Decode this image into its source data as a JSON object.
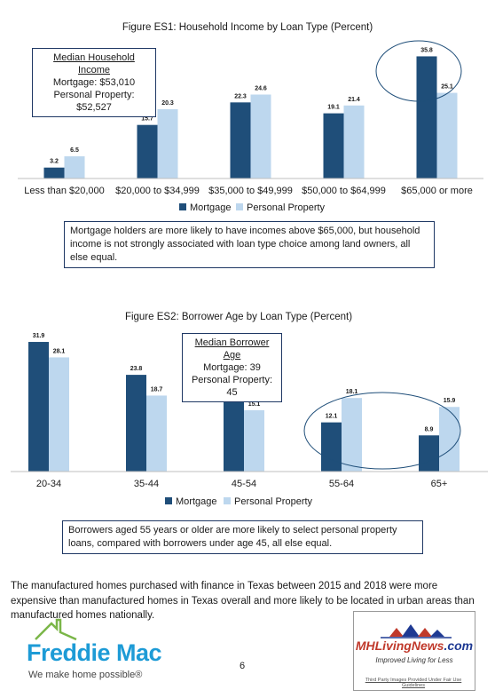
{
  "chart_data": [
    {
      "type": "bar",
      "title": "Figure ES1: Household Income by Loan Type (Percent)",
      "categories": [
        "Less than $20,000",
        "$20,000 to $34,999",
        "$35,000 to $49,999",
        "$50,000 to $64,999",
        "$65,000 or more"
      ],
      "series": [
        {
          "name": "Mortgage",
          "values": [
            3.2,
            15.7,
            22.3,
            19.1,
            35.8
          ],
          "color": "#1f4e79"
        },
        {
          "name": "Personal Property",
          "values": [
            6.5,
            20.3,
            24.6,
            21.4,
            25.1
          ],
          "color": "#bdd7ee"
        }
      ],
      "value_labels": [
        "3.2",
        "15.7",
        "22.3",
        "19.1",
        "35.8",
        "6.5",
        "20.3",
        "24.6",
        "21.4",
        "25.1"
      ],
      "ylim": [
        0,
        38
      ],
      "grid": false,
      "legend": "bottom",
      "highlight_category": "$65,000 or more",
      "median_box": {
        "heading": "Median Household Income",
        "line1": "Mortgage: $53,010",
        "line2": "Personal Property: $52,527"
      },
      "note": "Mortgage holders are more likely to have incomes above $65,000, but household income is not strongly associated with loan type choice among land owners, all else equal."
    },
    {
      "type": "bar",
      "title": "Figure ES2: Borrower Age by Loan Type (Percent)",
      "categories": [
        "20-34",
        "35-44",
        "45-54",
        "55-64",
        "65+"
      ],
      "series": [
        {
          "name": "Mortgage",
          "values": [
            31.9,
            23.8,
            18.1,
            12.1,
            8.9
          ],
          "color": "#1f4e79"
        },
        {
          "name": "Personal Property",
          "values": [
            28.1,
            18.7,
            15.1,
            18.1,
            15.9
          ],
          "color": "#bdd7ee"
        }
      ],
      "value_labels": [
        "31.9",
        "23.8",
        "18.1",
        "12.1",
        "8.9",
        "28.1",
        "18.7",
        "15.1",
        "18.1",
        "15.9"
      ],
      "ylim": [
        0,
        33
      ],
      "grid": false,
      "legend": "bottom",
      "highlight_categories": [
        "55-64",
        "65+"
      ],
      "median_box": {
        "heading": "Median Borrower Age",
        "line1": "Mortgage: 39",
        "line2": "Personal Property: 45"
      },
      "note": "Borrowers aged 55 years or older are more likely to select personal property loans, compared with borrowers under age 45, all else equal."
    }
  ],
  "paragraph": "The manufactured homes purchased with finance in Texas between 2015 and 2018 were more expensive than manufactured homes in Texas overall and more likely to be located in urban areas than manufactured homes nationally.",
  "page_number": "6",
  "freddie_mac": {
    "name": "Freddie Mac",
    "tagline": "We make home possible®",
    "color": "#1d9bd6"
  },
  "mhlivingnews": {
    "name_a": "MHLivingNews",
    "name_b": ".com",
    "tagline": "Improved Living for Less",
    "footer": "Third Party Images Provided Under Fair Use Guidelines"
  }
}
